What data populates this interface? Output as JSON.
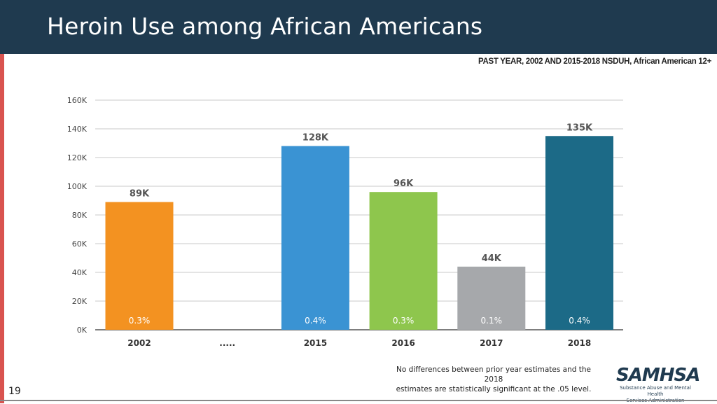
{
  "slide": {
    "title": "Heroin Use among African Americans",
    "subtitle": "PAST YEAR, 2002 AND 2015-2018 NSDUH, African American 12+",
    "footnote_line1": "No differences between prior year estimates and the 2018",
    "footnote_line2": "estimates are statistically significant at the .05 level.",
    "page_number": "19",
    "logo_text": "SAMHSA",
    "logo_tagline_1": "Substance Abuse and Mental Health",
    "logo_tagline_2": "Services Administration"
  },
  "colors": {
    "header": "#1f3a4f",
    "accent_stripe": "#d9534f"
  },
  "chart_data": {
    "type": "bar",
    "categories": [
      "2002",
      ".....",
      "2015",
      "2016",
      "2017",
      "2018"
    ],
    "values": [
      89,
      null,
      128,
      96,
      44,
      135
    ],
    "value_labels": [
      "89K",
      "",
      "128K",
      "96K",
      "44K",
      "135K"
    ],
    "percent_labels": [
      "0.3%",
      "",
      "0.4%",
      "0.3%",
      "0.1%",
      "0.4%"
    ],
    "colors": [
      "#f39221",
      null,
      "#3a93d3",
      "#8ec64d",
      "#a6a8ab",
      "#1c6a87"
    ],
    "yticks": [
      0,
      20,
      40,
      60,
      80,
      100,
      120,
      140,
      160
    ],
    "ytick_labels": [
      "0K",
      "20K",
      "40K",
      "60K",
      "80K",
      "100K",
      "120K",
      "140K",
      "160K"
    ],
    "ylim": [
      0,
      160
    ],
    "grid": true,
    "xlabel": "",
    "ylabel": ""
  }
}
